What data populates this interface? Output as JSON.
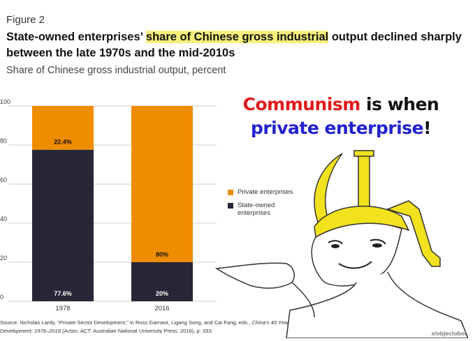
{
  "figure": {
    "label": "Figure 2",
    "title_parts": [
      "State-owned enterprises’ ",
      "share of Chinese gross industrial",
      " output declined sharply between the late 1970s and the mid-2010s"
    ],
    "subtitle": "Share of Chinese gross industrial output, percent"
  },
  "meme": {
    "word_communism": "Communism",
    "word_is_when": " is when",
    "word_private_enterprise": "private enterprise",
    "word_bang": "!",
    "credit": "x/objectobot"
  },
  "legend": {
    "private": "Private enterprises",
    "state": "State-owned enterprises"
  },
  "source": {
    "before": "Source: Nicholas Lardy, “Private Sector Development,” in Ross Garnaut, Ligang Song, and Cai Fang, eds., ",
    "italic": "China’s 40 Years of Reform and Development: 1978–2018",
    "after": " (Acton, ACT: Australian National University Press, 2018), p. 333."
  },
  "colors": {
    "private": "#f08c00",
    "state": "#262637"
  },
  "chart_data": {
    "type": "bar",
    "stacked": true,
    "categories": [
      "1978",
      "2016"
    ],
    "series": [
      {
        "name": "State-owned enterprises",
        "values": [
          77.6,
          20
        ],
        "labels": [
          "77.6%",
          "20%"
        ]
      },
      {
        "name": "Private enterprises",
        "values": [
          22.4,
          80
        ],
        "labels": [
          "22.4%",
          "80%"
        ]
      }
    ],
    "ylim": [
      0,
      100
    ],
    "yticks": [
      0,
      20,
      40,
      60,
      80,
      100
    ],
    "grid": true
  }
}
